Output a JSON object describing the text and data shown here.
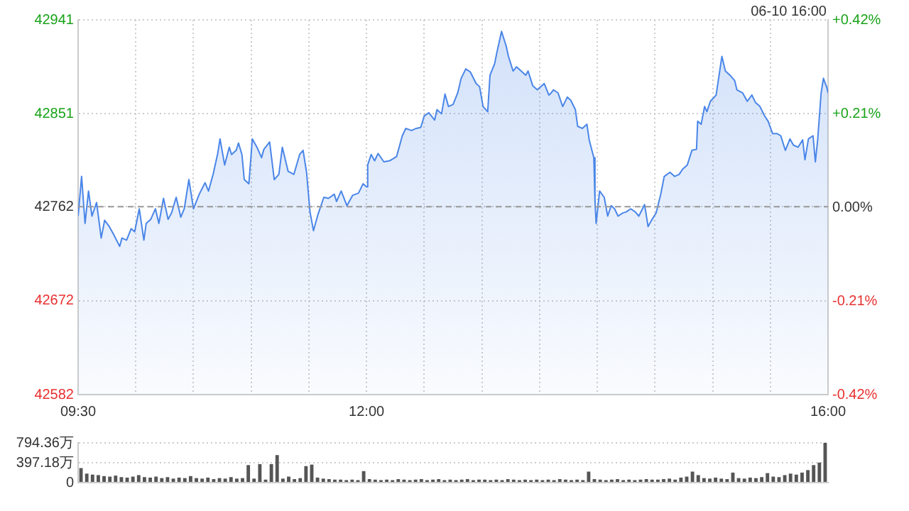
{
  "chart_data": [
    {
      "type": "area",
      "subtitle": "06-10 16:00",
      "x": [
        9.5,
        9.53,
        9.56,
        9.59,
        9.62,
        9.66,
        9.7,
        9.73,
        9.77,
        9.81,
        9.86,
        9.88,
        9.92,
        9.96,
        9.99,
        10.03,
        10.07,
        10.09,
        10.13,
        10.17,
        10.2,
        10.24,
        10.28,
        10.31,
        10.35,
        10.39,
        10.42,
        10.46,
        10.5,
        10.55,
        10.6,
        10.63,
        10.67,
        10.71,
        10.73,
        10.77,
        10.81,
        10.83,
        10.87,
        10.89,
        10.92,
        10.94,
        10.98,
        11.01,
        11.05,
        11.09,
        11.11,
        11.16,
        11.2,
        11.24,
        11.27,
        11.32,
        11.37,
        11.42,
        11.45,
        11.48,
        11.51,
        11.54,
        11.58,
        11.63,
        11.67,
        11.72,
        11.74,
        11.78,
        11.83,
        11.88,
        11.93,
        11.97,
        12.0,
        12.01,
        12.04,
        12.07,
        12.1,
        12.15,
        12.2,
        12.26,
        12.31,
        12.34,
        12.39,
        12.43,
        12.47,
        12.5,
        12.54,
        12.59,
        12.61,
        12.65,
        12.68,
        12.71,
        12.75,
        12.79,
        12.82,
        12.86,
        12.9,
        12.95,
        12.98,
        13.01,
        13.05,
        13.07,
        13.11,
        13.13,
        13.17,
        13.21,
        13.23,
        13.27,
        13.3,
        13.34,
        13.38,
        13.4,
        13.44,
        13.48,
        13.5,
        13.54,
        13.58,
        13.6,
        13.62,
        13.66,
        13.7,
        13.74,
        13.77,
        13.81,
        13.83,
        13.87,
        13.91,
        13.93,
        13.97,
        13.98,
        13.99,
        14.02,
        14.06,
        14.09,
        14.12,
        14.15,
        14.18,
        14.22,
        14.25,
        14.29,
        14.33,
        14.36,
        14.41,
        14.44,
        14.47,
        14.51,
        14.55,
        14.58,
        14.63,
        14.67,
        14.71,
        14.74,
        14.78,
        14.82,
        14.86,
        14.87,
        14.9,
        14.93,
        14.95,
        14.98,
        15.03,
        15.08,
        15.11,
        15.15,
        15.19,
        15.21,
        15.26,
        15.3,
        15.34,
        15.37,
        15.41,
        15.45,
        15.48,
        15.52,
        15.56,
        15.59,
        15.63,
        15.67,
        15.7,
        15.74,
        15.78,
        15.8,
        15.83,
        15.87,
        15.89,
        15.91,
        15.94,
        15.96,
        15.99,
        16.0
      ],
      "series": [
        {
          "color": "#4a86e8",
          "values": [
            42753,
            42791,
            42746,
            42777,
            42753,
            42766,
            42732,
            42749,
            42743,
            42735,
            42724,
            42732,
            42730,
            42741,
            42738,
            42760,
            42730,
            42746,
            42750,
            42760,
            42746,
            42770,
            42750,
            42756,
            42771,
            42752,
            42760,
            42788,
            42760,
            42774,
            42785,
            42777,
            42793,
            42813,
            42827,
            42802,
            42819,
            42812,
            42816,
            42823,
            42812,
            42788,
            42784,
            42827,
            42819,
            42809,
            42817,
            42824,
            42788,
            42793,
            42819,
            42796,
            42793,
            42812,
            42816,
            42795,
            42757,
            42739,
            42755,
            42771,
            42770,
            42774,
            42767,
            42777,
            42763,
            42773,
            42775,
            42784,
            42781,
            42802,
            42812,
            42806,
            42813,
            42805,
            42806,
            42810,
            42830,
            42837,
            42835,
            42837,
            42838,
            42849,
            42852,
            42845,
            42855,
            42851,
            42870,
            42858,
            42860,
            42871,
            42885,
            42894,
            42891,
            42880,
            42877,
            42858,
            42853,
            42888,
            42899,
            42910,
            42930,
            42916,
            42906,
            42892,
            42896,
            42892,
            42888,
            42892,
            42878,
            42874,
            42876,
            42880,
            42869,
            42871,
            42874,
            42871,
            42858,
            42867,
            42864,
            42855,
            42839,
            42837,
            42841,
            42826,
            42809,
            42767,
            42746,
            42777,
            42771,
            42753,
            42763,
            42760,
            42753,
            42756,
            42757,
            42760,
            42757,
            42753,
            42764,
            42743,
            42749,
            42756,
            42774,
            42791,
            42795,
            42791,
            42793,
            42798,
            42802,
            42816,
            42817,
            42844,
            42841,
            42858,
            42853,
            42863,
            42869,
            42906,
            42892,
            42888,
            42883,
            42874,
            42871,
            42863,
            42869,
            42862,
            42858,
            42849,
            42844,
            42832,
            42832,
            42830,
            42816,
            42827,
            42821,
            42819,
            42826,
            42807,
            42827,
            42830,
            42805,
            42826,
            42871,
            42885,
            42876,
            42871
          ]
        }
      ],
      "xlim": [
        9.5,
        16
      ],
      "xticks": [
        {
          "value": 9.5,
          "label": "09:30"
        },
        {
          "value": 10,
          "label": null
        },
        {
          "value": 10.5,
          "label": null
        },
        {
          "value": 11,
          "label": null
        },
        {
          "value": 11.5,
          "label": null
        },
        {
          "value": 12,
          "label": "12:00"
        },
        {
          "value": 12.5,
          "label": null
        },
        {
          "value": 13,
          "label": null
        },
        {
          "value": 13.5,
          "label": null
        },
        {
          "value": 14,
          "label": null
        },
        {
          "value": 14.5,
          "label": null
        },
        {
          "value": 15,
          "label": null
        },
        {
          "value": 15.5,
          "label": null
        },
        {
          "value": 16,
          "label": "16:00"
        }
      ],
      "ylim": [
        42582,
        42941
      ],
      "yticks": [
        42582,
        42672,
        42762,
        42851,
        42941
      ],
      "y2lim": [
        -0.42,
        0.42
      ],
      "y2ticks": [
        {
          "value": -0.42,
          "label": "-0.42%"
        },
        {
          "value": -0.21,
          "label": "-0.21%"
        },
        {
          "value": 0,
          "label": "0.00%"
        },
        {
          "value": 0.21,
          "label": "+0.21%"
        },
        {
          "value": 0.42,
          "label": "+0.42%"
        }
      ],
      "ref_lines": [
        {
          "axis": "y",
          "value": 42762,
          "color": "#999999",
          "line_style": "dashed"
        }
      ],
      "grid": true,
      "legend": false,
      "marker": "none"
    },
    {
      "type": "bar",
      "categories": [
        null,
        null,
        null,
        null,
        null,
        null,
        null,
        null,
        null,
        null,
        null,
        null,
        null,
        null,
        null,
        null,
        null,
        null,
        null,
        null,
        null,
        null,
        null,
        null,
        null,
        null,
        null,
        null,
        null,
        null,
        null,
        null,
        null,
        null,
        null,
        null,
        null,
        null,
        null,
        null,
        null,
        null,
        null,
        null,
        null,
        null,
        null,
        null,
        null,
        null,
        null,
        null,
        null,
        null,
        null,
        null,
        null,
        null,
        null,
        null,
        null,
        null,
        null,
        null,
        null,
        null,
        null,
        null,
        null,
        null,
        null,
        null,
        null,
        null,
        null,
        null,
        null,
        null,
        null,
        null,
        null,
        null,
        null,
        null,
        null,
        null,
        null,
        null,
        null,
        null,
        null,
        null,
        null,
        null,
        null,
        null,
        null,
        null,
        null,
        null,
        null,
        null,
        null,
        null,
        null,
        null,
        null,
        null,
        null,
        null,
        null,
        null,
        null,
        null,
        null,
        null,
        null,
        null,
        null,
        null,
        null,
        null,
        null,
        null,
        null,
        null,
        null,
        null,
        null,
        null
      ],
      "values": [
        290,
        180,
        160,
        150,
        130,
        120,
        140,
        110,
        100,
        120,
        150,
        110,
        100,
        120,
        90,
        110,
        80,
        100,
        90,
        130,
        90,
        80,
        100,
        70,
        90,
        80,
        110,
        80,
        90,
        350,
        80,
        370,
        60,
        370,
        550,
        80,
        120,
        70,
        90,
        330,
        360,
        100,
        80,
        70,
        60,
        60,
        50,
        60,
        50,
        230,
        70,
        60,
        50,
        60,
        50,
        70,
        60,
        50,
        60,
        70,
        50,
        60,
        70,
        50,
        60,
        50,
        60,
        70,
        50,
        60,
        60,
        50,
        60,
        50,
        70,
        60,
        50,
        60,
        50,
        60,
        50,
        60,
        50,
        70,
        60,
        50,
        60,
        50,
        220,
        70,
        60,
        50,
        60,
        70,
        50,
        60,
        50,
        60,
        70,
        60,
        60,
        70,
        80,
        60,
        100,
        120,
        220,
        150,
        90,
        80,
        100,
        80,
        70,
        200,
        90,
        80,
        100,
        90,
        110,
        190,
        120,
        110,
        150,
        180,
        160,
        200,
        250,
        350,
        400,
        794.36
      ],
      "color": "#555555",
      "ylim": [
        0,
        794.36
      ],
      "yticks": [
        0,
        {
          "value": 397.18,
          "label": "397.18万"
        },
        {
          "value": 794.36,
          "label": "794.36万"
        }
      ],
      "grid": "y",
      "tick_labels": "y",
      "legend": false
    }
  ]
}
